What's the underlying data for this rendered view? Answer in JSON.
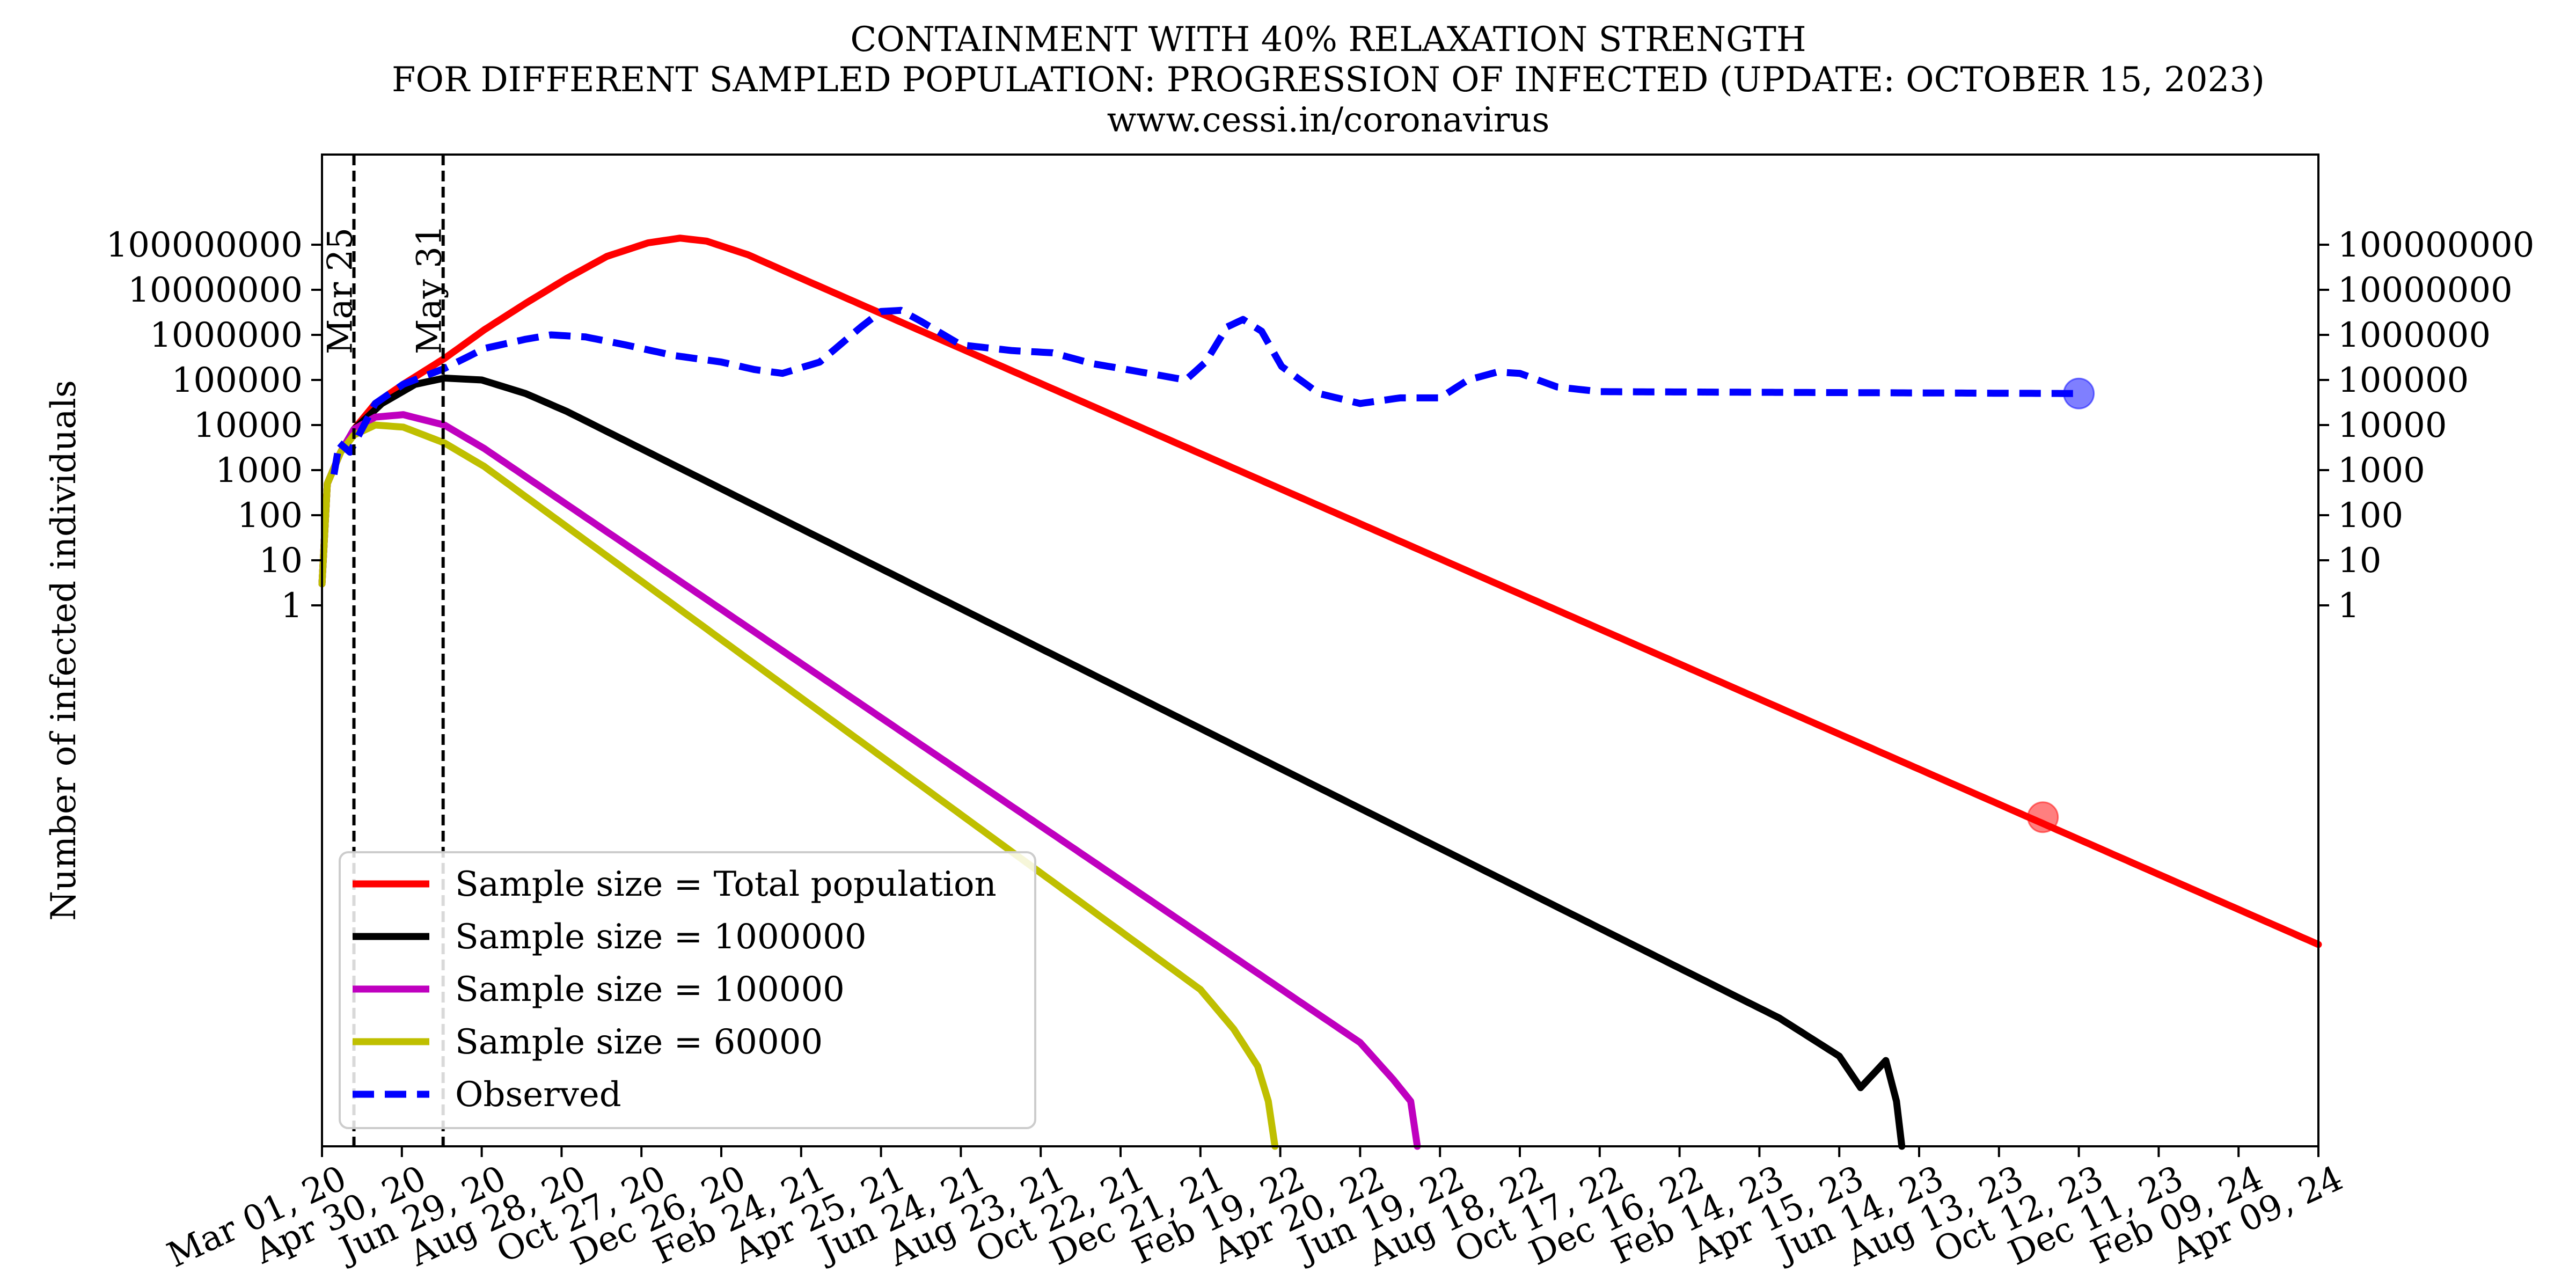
{
  "chart_data": {
    "type": "line",
    "title_lines": [
      "CONTAINMENT WITH 40% RELAXATION STRENGTH",
      "FOR DIFFERENT SAMPLED POPULATION: PROGRESSION OF INFECTED (UPDATE: OCTOBER 15, 2023)",
      "www.cessi.in/coronavirus"
    ],
    "ylabel": "Number of infected individuals",
    "x_type": "date",
    "xlim": [
      "2020-03-01",
      "2024-04-09"
    ],
    "x_ticks": [
      {
        "date": "2020-03-01",
        "label": "Mar 01, 20"
      },
      {
        "date": "2020-04-30",
        "label": "Apr 30, 20"
      },
      {
        "date": "2020-06-29",
        "label": "Jun 29, 20"
      },
      {
        "date": "2020-08-28",
        "label": "Aug 28, 20"
      },
      {
        "date": "2020-10-27",
        "label": "Oct 27, 20"
      },
      {
        "date": "2020-12-26",
        "label": "Dec 26, 20"
      },
      {
        "date": "2021-02-24",
        "label": "Feb 24, 21"
      },
      {
        "date": "2021-04-25",
        "label": "Apr 25, 21"
      },
      {
        "date": "2021-06-24",
        "label": "Jun 24, 21"
      },
      {
        "date": "2021-08-23",
        "label": "Aug 23, 21"
      },
      {
        "date": "2021-10-22",
        "label": "Oct 22, 21"
      },
      {
        "date": "2021-12-21",
        "label": "Dec 21, 21"
      },
      {
        "date": "2022-02-19",
        "label": "Feb 19, 22"
      },
      {
        "date": "2022-04-20",
        "label": "Apr 20, 22"
      },
      {
        "date": "2022-06-19",
        "label": "Jun 19, 22"
      },
      {
        "date": "2022-08-18",
        "label": "Aug 18, 22"
      },
      {
        "date": "2022-10-17",
        "label": "Oct 17, 22"
      },
      {
        "date": "2022-12-16",
        "label": "Dec 16, 22"
      },
      {
        "date": "2023-02-14",
        "label": "Feb 14, 23"
      },
      {
        "date": "2023-04-15",
        "label": "Apr 15, 23"
      },
      {
        "date": "2023-06-14",
        "label": "Jun 14, 23"
      },
      {
        "date": "2023-08-13",
        "label": "Aug 13, 23"
      },
      {
        "date": "2023-10-12",
        "label": "Oct 12, 23"
      },
      {
        "date": "2023-12-11",
        "label": "Dec 11, 23"
      },
      {
        "date": "2024-02-09",
        "label": "Feb 09, 24"
      },
      {
        "date": "2024-04-09",
        "label": "Apr 09, 24"
      }
    ],
    "y_scale": "log",
    "ylim": [
      1e-12,
      10000000000.0
    ],
    "y_ticks": [
      {
        "value": 1,
        "label": "1"
      },
      {
        "value": 10,
        "label": "10"
      },
      {
        "value": 100,
        "label": "100"
      },
      {
        "value": 1000,
        "label": "1000"
      },
      {
        "value": 10000,
        "label": "10000"
      },
      {
        "value": 100000,
        "label": "100000"
      },
      {
        "value": 1000000,
        "label": "1000000"
      },
      {
        "value": 10000000,
        "label": "10000000"
      },
      {
        "value": 100000000,
        "label": "100000000"
      }
    ],
    "grid": false,
    "legend_position": "lower-left",
    "series": [
      {
        "name": "Sample size = Total population",
        "color": "#ff0000",
        "dash": "solid",
        "points": [
          {
            "x": "2020-03-01",
            "y": 3
          },
          {
            "x": "2020-03-05",
            "y": 500
          },
          {
            "x": "2020-03-15",
            "y": 2500
          },
          {
            "x": "2020-03-25",
            "y": 8000
          },
          {
            "x": "2020-04-10",
            "y": 30000
          },
          {
            "x": "2020-05-01",
            "y": 80000
          },
          {
            "x": "2020-06-01",
            "y": 300000
          },
          {
            "x": "2020-07-01",
            "y": 1300000
          },
          {
            "x": "2020-08-01",
            "y": 5000000
          },
          {
            "x": "2020-09-01",
            "y": 18000000
          },
          {
            "x": "2020-10-01",
            "y": 55000000
          },
          {
            "x": "2020-11-01",
            "y": 110000000
          },
          {
            "x": "2020-11-25",
            "y": 140000000
          },
          {
            "x": "2020-12-15",
            "y": 120000000
          },
          {
            "x": "2021-01-15",
            "y": 60000000
          },
          {
            "x": "2021-02-24",
            "y": 18000000
          },
          {
            "x": "2024-04-09",
            "y": 3e-08
          }
        ]
      },
      {
        "name": "Sample size = 1000000",
        "color": "#000000",
        "dash": "solid",
        "points": [
          {
            "x": "2020-03-01",
            "y": 3
          },
          {
            "x": "2020-03-05",
            "y": 500
          },
          {
            "x": "2020-03-15",
            "y": 2500
          },
          {
            "x": "2020-03-25",
            "y": 8000
          },
          {
            "x": "2020-04-15",
            "y": 30000
          },
          {
            "x": "2020-05-10",
            "y": 80000
          },
          {
            "x": "2020-06-01",
            "y": 110000
          },
          {
            "x": "2020-06-29",
            "y": 100000
          },
          {
            "x": "2020-08-01",
            "y": 50000
          },
          {
            "x": "2020-09-01",
            "y": 20000
          },
          {
            "x": "2023-03-01",
            "y": 7e-10
          },
          {
            "x": "2023-04-15",
            "y": 1e-10
          },
          {
            "x": "2023-05-01",
            "y": 2e-11
          },
          {
            "x": "2023-05-20",
            "y": 8e-11
          },
          {
            "x": "2023-05-28",
            "y": 1e-11
          },
          {
            "x": "2023-06-01",
            "y": 1e-12
          }
        ]
      },
      {
        "name": "Sample size = 100000",
        "color": "#bf00bf",
        "dash": "solid",
        "points": [
          {
            "x": "2020-03-01",
            "y": 3
          },
          {
            "x": "2020-03-05",
            "y": 500
          },
          {
            "x": "2020-03-15",
            "y": 2500
          },
          {
            "x": "2020-03-25",
            "y": 8000
          },
          {
            "x": "2020-04-10",
            "y": 15000
          },
          {
            "x": "2020-05-01",
            "y": 17000
          },
          {
            "x": "2020-06-01",
            "y": 10000
          },
          {
            "x": "2020-07-01",
            "y": 3000
          },
          {
            "x": "2022-03-01",
            "y": 2e-09
          },
          {
            "x": "2022-04-20",
            "y": 2e-10
          },
          {
            "x": "2022-05-15",
            "y": 3e-11
          },
          {
            "x": "2022-05-28",
            "y": 1e-11
          },
          {
            "x": "2022-06-02",
            "y": 1e-12
          }
        ]
      },
      {
        "name": "Sample size = 60000",
        "color": "#bfbf00",
        "dash": "solid",
        "points": [
          {
            "x": "2020-03-01",
            "y": 3
          },
          {
            "x": "2020-03-05",
            "y": 500
          },
          {
            "x": "2020-03-15",
            "y": 2500
          },
          {
            "x": "2020-03-25",
            "y": 6000
          },
          {
            "x": "2020-04-10",
            "y": 10000
          },
          {
            "x": "2020-05-01",
            "y": 9000
          },
          {
            "x": "2020-06-01",
            "y": 4000
          },
          {
            "x": "2020-07-01",
            "y": 1200
          },
          {
            "x": "2021-12-21",
            "y": 3e-09
          },
          {
            "x": "2022-01-15",
            "y": 4e-10
          },
          {
            "x": "2022-02-02",
            "y": 6e-11
          },
          {
            "x": "2022-02-10",
            "y": 1e-11
          },
          {
            "x": "2022-02-15",
            "y": 1e-12
          }
        ]
      },
      {
        "name": "Observed",
        "color": "#0000ff",
        "dash": "dashed",
        "points": [
          {
            "x": "2020-03-10",
            "y": 800
          },
          {
            "x": "2020-03-14",
            "y": 4000
          },
          {
            "x": "2020-03-22",
            "y": 2500
          },
          {
            "x": "2020-04-10",
            "y": 30000
          },
          {
            "x": "2020-05-01",
            "y": 80000
          },
          {
            "x": "2020-06-01",
            "y": 180000
          },
          {
            "x": "2020-07-01",
            "y": 500000
          },
          {
            "x": "2020-08-01",
            "y": 800000
          },
          {
            "x": "2020-08-20",
            "y": 1000000
          },
          {
            "x": "2020-09-15",
            "y": 900000
          },
          {
            "x": "2020-10-15",
            "y": 600000
          },
          {
            "x": "2020-11-20",
            "y": 350000
          },
          {
            "x": "2020-12-26",
            "y": 250000
          },
          {
            "x": "2021-01-20",
            "y": 170000
          },
          {
            "x": "2021-02-10",
            "y": 140000
          },
          {
            "x": "2021-03-10",
            "y": 250000
          },
          {
            "x": "2021-04-10",
            "y": 1500000
          },
          {
            "x": "2021-04-25",
            "y": 3300000
          },
          {
            "x": "2021-05-10",
            "y": 3500000
          },
          {
            "x": "2021-05-25",
            "y": 2000000
          },
          {
            "x": "2021-06-24",
            "y": 600000
          },
          {
            "x": "2021-08-01",
            "y": 450000
          },
          {
            "x": "2021-09-01",
            "y": 400000
          },
          {
            "x": "2021-10-01",
            "y": 230000
          },
          {
            "x": "2021-11-01",
            "y": 160000
          },
          {
            "x": "2021-12-10",
            "y": 100000
          },
          {
            "x": "2021-12-25",
            "y": 250000
          },
          {
            "x": "2022-01-10",
            "y": 1500000
          },
          {
            "x": "2022-01-22",
            "y": 2200000
          },
          {
            "x": "2022-02-05",
            "y": 1200000
          },
          {
            "x": "2022-02-20",
            "y": 200000
          },
          {
            "x": "2022-03-20",
            "y": 50000
          },
          {
            "x": "2022-04-20",
            "y": 30000
          },
          {
            "x": "2022-05-20",
            "y": 40000
          },
          {
            "x": "2022-06-19",
            "y": 40000
          },
          {
            "x": "2022-07-10",
            "y": 100000
          },
          {
            "x": "2022-08-01",
            "y": 150000
          },
          {
            "x": "2022-08-18",
            "y": 140000
          },
          {
            "x": "2022-09-15",
            "y": 70000
          },
          {
            "x": "2022-10-17",
            "y": 55000
          },
          {
            "x": "2023-10-12",
            "y": 50000
          }
        ]
      }
    ],
    "markers": [
      {
        "x": "2023-10-12",
        "y": 50000,
        "color": "#0000ff"
      },
      {
        "x": "2023-09-15",
        "y": 2e-05,
        "color": "#ff0000"
      }
    ],
    "vlines": [
      {
        "x": "2020-03-25",
        "label": "Mar 25"
      },
      {
        "x": "2020-05-31",
        "label": "May 31"
      }
    ]
  }
}
